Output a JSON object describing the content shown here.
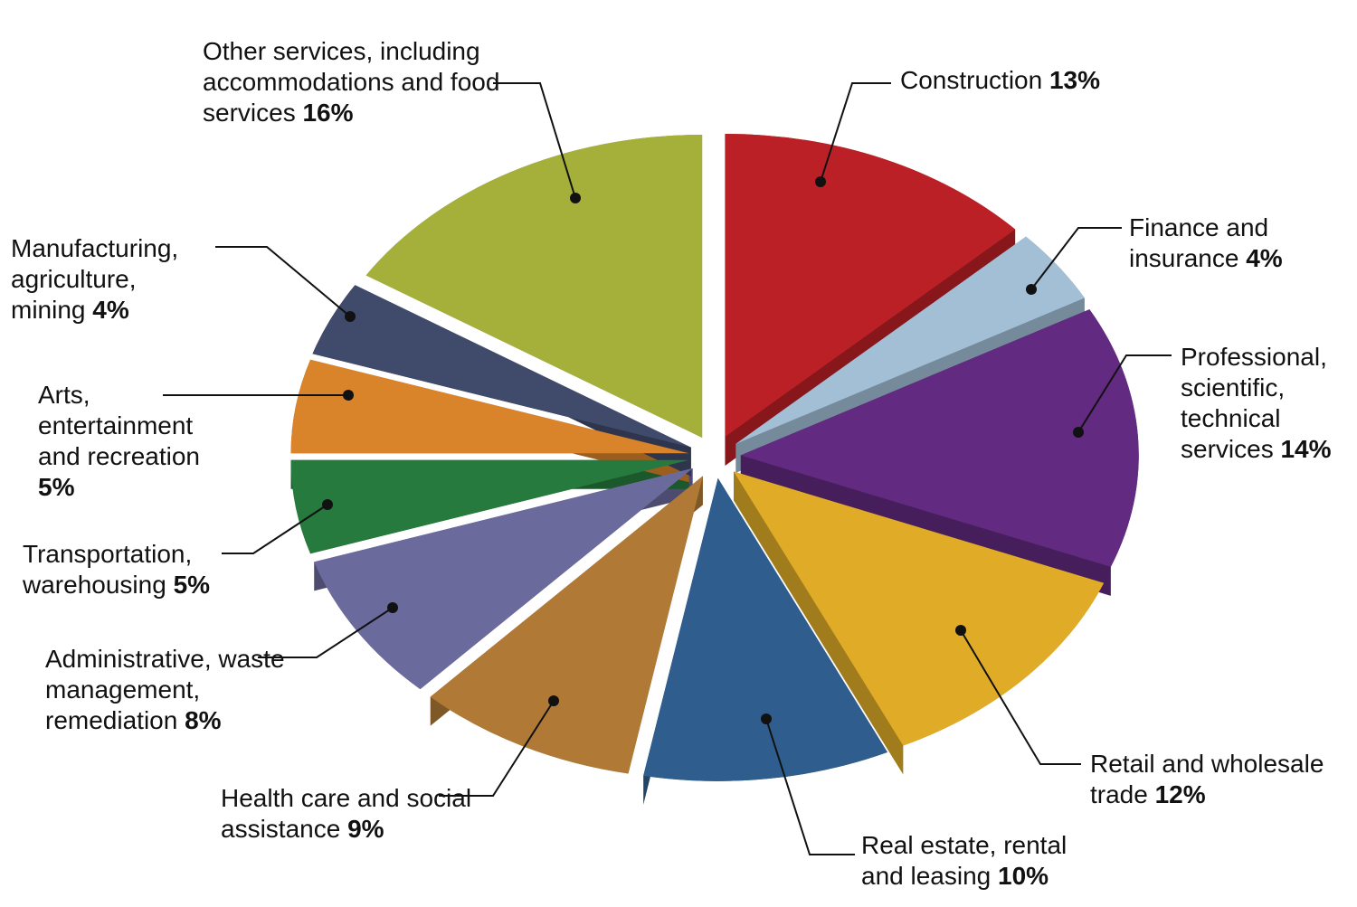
{
  "chart_data": {
    "type": "pie",
    "categories": [
      "Construction",
      "Finance and insurance",
      "Professional, scientific, technical services",
      "Retail and wholesale trade",
      "Real estate, rental and leasing",
      "Health care and social assistance",
      "Administrative, waste management, remediation",
      "Transportation, warehousing",
      "Arts, entertainment and recreation",
      "Manufacturing, agriculture, mining",
      "Other services, including accommodations and food services"
    ],
    "values": [
      13,
      4,
      14,
      12,
      10,
      9,
      8,
      5,
      5,
      4,
      16
    ],
    "value_labels": [
      "13%",
      "4%",
      "14%",
      "12%",
      "10%",
      "9%",
      "8%",
      "5%",
      "5%",
      "4%",
      "16%"
    ],
    "colors": [
      "#bb2026",
      "#a3bfd6",
      "#622a80",
      "#e0ac28",
      "#2f5e8e",
      "#b07a36",
      "#6b6a9c",
      "#267a3d",
      "#d9832a",
      "#404a6b",
      "#a5b03a"
    ]
  }
}
